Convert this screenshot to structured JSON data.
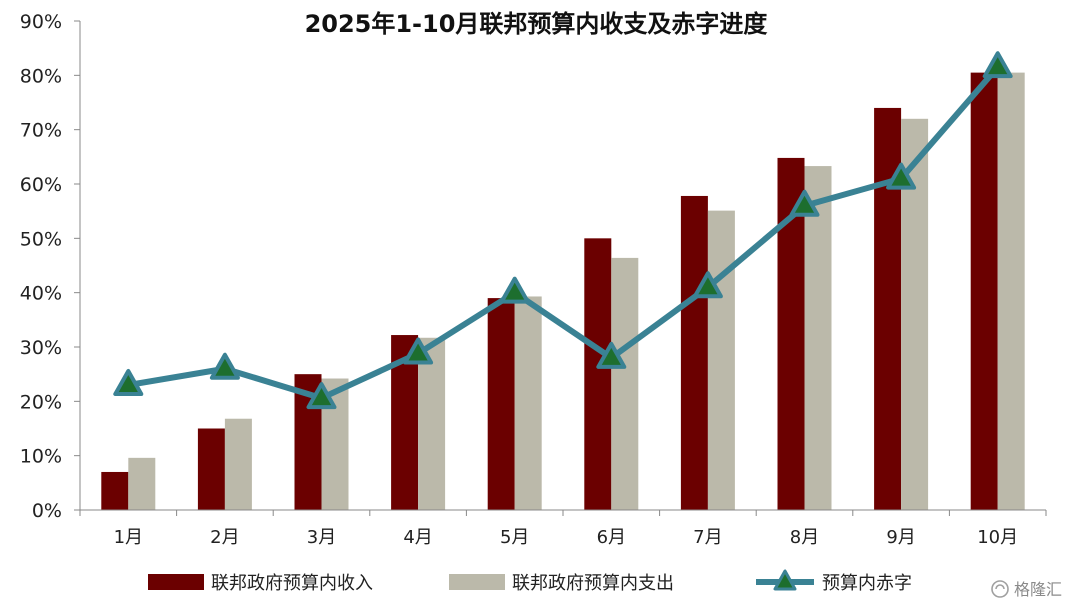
{
  "chart_data": {
    "type": "bar",
    "title": "2025年1-10月联邦预算内收支及赤字进度",
    "xlabel": "",
    "ylabel": "",
    "categories": [
      "1月",
      "2月",
      "3月",
      "4月",
      "5月",
      "6月",
      "7月",
      "8月",
      "9月",
      "10月"
    ],
    "ylim": [
      0,
      90
    ],
    "yticks": [
      "0%",
      "10%",
      "20%",
      "30%",
      "40%",
      "50%",
      "60%",
      "70%",
      "80%",
      "90%"
    ],
    "grid": false,
    "legend_position": "bottom",
    "series": [
      {
        "name": "联邦政府预算内收入",
        "type": "bar",
        "color": "#6b0000",
        "values": [
          7.0,
          15.0,
          25.0,
          32.2,
          39.0,
          50.0,
          57.8,
          64.8,
          74.0,
          80.5
        ]
      },
      {
        "name": "联邦政府预算内支出",
        "type": "bar",
        "color": "#bbb9aa",
        "values": [
          9.6,
          16.8,
          24.2,
          31.7,
          39.3,
          46.4,
          55.1,
          63.3,
          72.0,
          80.5
        ]
      },
      {
        "name": "预算内赤字",
        "type": "line",
        "color": "#3a8294",
        "marker": "triangle",
        "marker_color": "#1d6e2e",
        "values": [
          23.0,
          26.0,
          20.6,
          28.8,
          40.0,
          28.0,
          41.0,
          56.0,
          61.0,
          81.5
        ]
      }
    ]
  },
  "watermark": {
    "icon": "gelonghui-logo-icon",
    "text": "格隆汇"
  }
}
